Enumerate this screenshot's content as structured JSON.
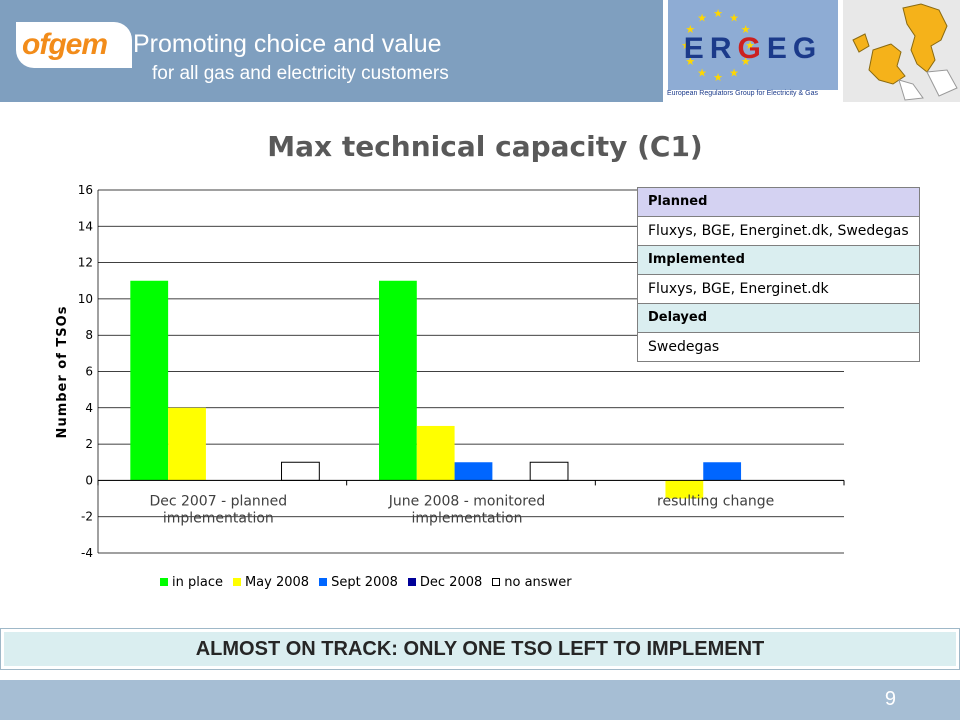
{
  "header": {
    "logo": "ofgem",
    "tagline_line1": "Promoting choice and value",
    "tagline_line2": "for all gas and electricity customers",
    "erg_logo": "ERGEG",
    "erg_subtitle": "European Regulators Group for Electricity & Gas"
  },
  "title": "Max technical capacity (C1)",
  "chart_data": {
    "type": "bar",
    "title": "Max technical capacity (C1)",
    "ylabel": "Number of TSOs",
    "xlabel": "",
    "ylim": [
      -4,
      16
    ],
    "yticks": [
      16,
      14,
      12,
      10,
      8,
      6,
      4,
      2,
      0,
      -2,
      -4
    ],
    "categories": [
      "Dec 2007 - planned implementation",
      "June 2008 - monitored implementation",
      "resulting change"
    ],
    "category_lines": [
      [
        "Dec 2007 - planned",
        "implementation"
      ],
      [
        "June 2008 - monitored",
        "implementation"
      ],
      [
        "resulting change"
      ]
    ],
    "series": [
      {
        "name": "in place",
        "color": "#00ff00",
        "values": [
          11,
          11,
          0
        ]
      },
      {
        "name": "May 2008",
        "color": "#ffff00",
        "values": [
          4,
          3,
          -1
        ]
      },
      {
        "name": "Sept 2008",
        "color": "#0066ff",
        "values": [
          0,
          1,
          1
        ]
      },
      {
        "name": "Dec 2008",
        "color": "#000099",
        "values": [
          0,
          0,
          0
        ]
      },
      {
        "name": "no answer",
        "color": "#ffffff",
        "values": [
          1,
          1,
          0
        ]
      }
    ],
    "grid": true,
    "legend_position": "bottom"
  },
  "info_table": [
    {
      "heading": "Planned",
      "value": "Fluxys, BGE, Energinet.dk, Swedegas"
    },
    {
      "heading": "Implemented",
      "value": "Fluxys, BGE, Energinet.dk"
    },
    {
      "heading": "Delayed",
      "value": "Swedegas"
    }
  ],
  "banner": "ALMOST ON TRACK:  ONLY  ONE  TSO  LEFT TO  IMPLEMENT",
  "page_number": "9"
}
